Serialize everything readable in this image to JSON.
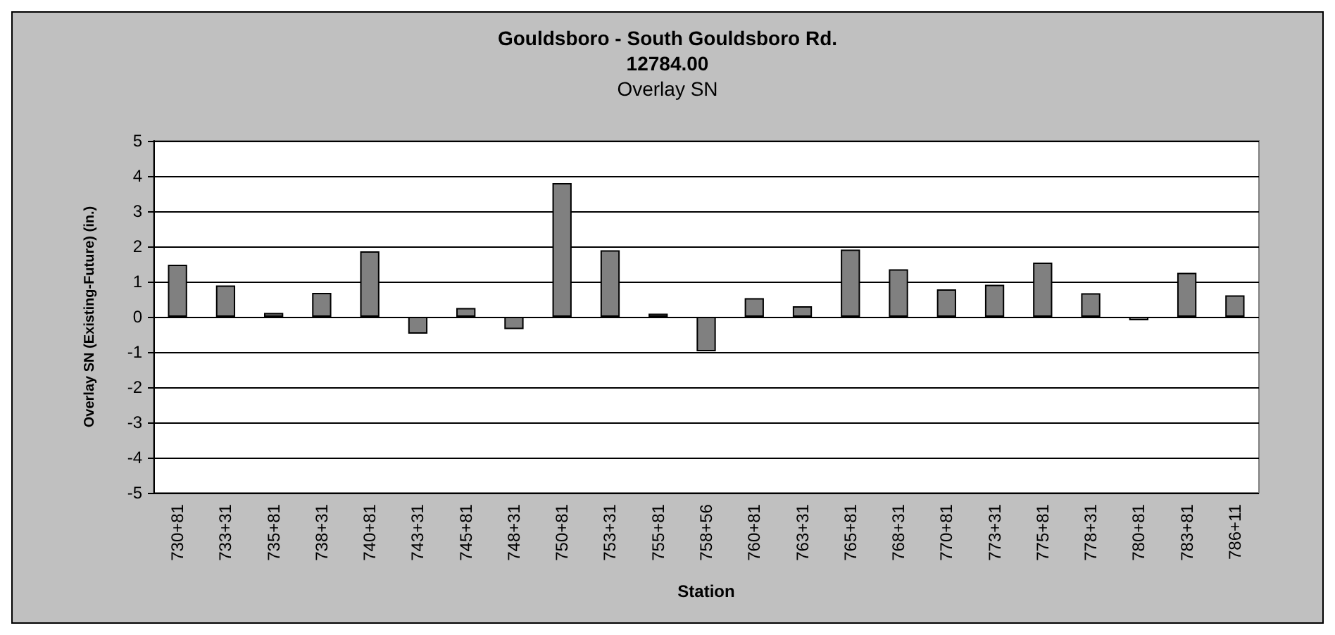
{
  "chart_data": {
    "type": "bar",
    "title": "Gouldsboro - South Gouldsboro Rd.\n12784.00",
    "subtitle": "Overlay SN",
    "xlabel": "Station",
    "ylabel": "Overlay SN (Existing-Future) (in.)",
    "categories": [
      "730+81",
      "733+31",
      "735+81",
      "738+31",
      "740+81",
      "743+31",
      "745+81",
      "748+31",
      "750+81",
      "753+31",
      "755+81",
      "758+56",
      "760+81",
      "763+31",
      "765+81",
      "768+31",
      "770+81",
      "773+31",
      "775+81",
      "778+31",
      "780+81",
      "783+81",
      "786+11"
    ],
    "values": [
      1.48,
      0.89,
      0.11,
      0.68,
      1.86,
      -0.48,
      0.25,
      -0.35,
      3.8,
      1.89,
      0.09,
      -0.98,
      0.53,
      0.3,
      1.91,
      1.35,
      0.78,
      0.91,
      1.54,
      0.67,
      -0.1,
      1.25,
      0.61
    ],
    "color": "#808080",
    "ylim": [
      -5,
      5
    ],
    "yticks": [
      -5,
      -4,
      -3,
      -2,
      -1,
      0,
      1,
      2,
      3,
      4,
      5
    ],
    "grid": "y"
  }
}
